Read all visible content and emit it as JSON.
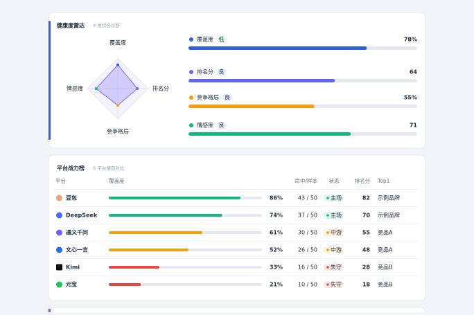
{
  "radar_card": {
    "title": "健康度雷达",
    "subtitle": "· 4 维综合诊断",
    "max": 100,
    "metrics": [
      {
        "name": "覆盖度",
        "tag": "低",
        "tag_color": "#12b76a",
        "value": {
          "value": 78,
          "label": "78%"
        },
        "color": "#2f5fdb"
      },
      {
        "name": "排名分",
        "tag": "良",
        "tag_color": "#3b6cf5",
        "value": 64,
        "color": "#6366f1"
      },
      {
        "name": "竞争格局",
        "tag": "良",
        "tag_color": "#3b6cf5",
        "value": {
          "value": 55,
          "label": "55%"
        },
        "color": "#f59e0b"
      },
      {
        "name": "情感度",
        "tag": "良",
        "tag_color": "#3b6cf5",
        "value": 71,
        "color": "#10b981"
      }
    ]
  },
  "platform_card": {
    "title": "平台战力榜",
    "subtitle": "· 6 平台横向对比",
    "headers": [
      "平台",
      "覆盖度",
      "命中/样本",
      "状态",
      "排名分",
      "Top1"
    ],
    "rows": [
      {
        "platform": "豆包",
        "coverage": {
          "value": 86,
          "label": "86%"
        },
        "hits": "43 / 50",
        "status": "主场",
        "score": 82,
        "top1": "示例品牌",
        "color": "#10b981",
        "status_color": "#10b981"
      },
      {
        "platform": "DeepSeek",
        "coverage": {
          "value": 74,
          "label": "74%"
        },
        "hits": "37 / 50",
        "status": "主场",
        "score": 70,
        "top1": "示例品牌",
        "color": "#10b981",
        "status_color": "#10b981"
      },
      {
        "platform": "通义千问",
        "coverage": {
          "value": 61,
          "label": "61%"
        },
        "hits": "30 / 50",
        "status": "中游",
        "score": 55,
        "top1": "竞品A",
        "color": "#f59e0b",
        "status_color": "#f59e0b"
      },
      {
        "platform": "文心一言",
        "coverage": {
          "value": 52,
          "label": "52%"
        },
        "hits": "26 / 50",
        "status": "中游",
        "score": 48,
        "top1": "竞品A",
        "color": "#f59e0b",
        "status_color": "#f59e0b"
      },
      {
        "platform": "Kimi",
        "coverage": {
          "value": 33,
          "label": "33%"
        },
        "hits": "16 / 50",
        "status": "失守",
        "score": 28,
        "top1": "竞品B",
        "color": "#ef4444",
        "status_color": "#ef4444"
      },
      {
        "platform": "元宝",
        "coverage": {
          "value": 21,
          "label": "21%"
        },
        "hits": "10 / 50",
        "status": "失守",
        "score": 18,
        "top1": "竞品B",
        "color": "#ef4444",
        "status_color": "#ef4444"
      }
    ]
  }
}
